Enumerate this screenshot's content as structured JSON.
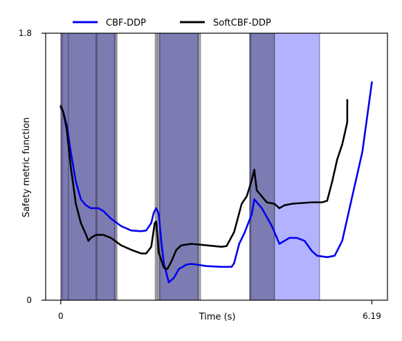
{
  "chart_data": {
    "type": "line",
    "title": "",
    "xlabel": "Time (s)",
    "ylabel": "Safety metric function",
    "xlim": [
      -0.3,
      6.5
    ],
    "ylim": [
      0,
      1.8
    ],
    "x_ticks": [
      0,
      6.19
    ],
    "x_tick_labels": [
      "0",
      "6.19"
    ],
    "y_ticks": [
      0,
      1.8
    ],
    "y_tick_labels": [
      "0",
      "1.8"
    ],
    "grid": false,
    "legend_position": "top, above plot",
    "series": [
      {
        "name": "CBF-DDP",
        "color": "#0000ee",
        "points": [
          [
            0,
            1.3
          ],
          [
            0.05,
            1.27
          ],
          [
            0.12,
            1.18
          ],
          [
            0.2,
            1.0
          ],
          [
            0.3,
            0.8
          ],
          [
            0.4,
            0.68
          ],
          [
            0.5,
            0.64
          ],
          [
            0.6,
            0.62
          ],
          [
            0.75,
            0.62
          ],
          [
            0.85,
            0.6
          ],
          [
            1.0,
            0.55
          ],
          [
            1.2,
            0.5
          ],
          [
            1.4,
            0.47
          ],
          [
            1.6,
            0.465
          ],
          [
            1.7,
            0.47
          ],
          [
            1.8,
            0.52
          ],
          [
            1.85,
            0.59
          ],
          [
            1.9,
            0.62
          ],
          [
            1.95,
            0.58
          ],
          [
            2.0,
            0.4
          ],
          [
            2.05,
            0.25
          ],
          [
            2.15,
            0.12
          ],
          [
            2.25,
            0.15
          ],
          [
            2.35,
            0.21
          ],
          [
            2.5,
            0.24
          ],
          [
            2.6,
            0.245
          ],
          [
            2.7,
            0.24
          ],
          [
            2.9,
            0.23
          ],
          [
            3.2,
            0.225
          ],
          [
            3.4,
            0.225
          ],
          [
            3.45,
            0.25
          ],
          [
            3.55,
            0.38
          ],
          [
            3.65,
            0.45
          ],
          [
            3.8,
            0.58
          ],
          [
            3.85,
            0.68
          ],
          [
            4.0,
            0.62
          ],
          [
            4.1,
            0.56
          ],
          [
            4.2,
            0.5
          ],
          [
            4.3,
            0.42
          ],
          [
            4.35,
            0.38
          ],
          [
            4.45,
            0.4
          ],
          [
            4.55,
            0.42
          ],
          [
            4.7,
            0.42
          ],
          [
            4.85,
            0.4
          ],
          [
            5.0,
            0.33
          ],
          [
            5.1,
            0.3
          ],
          [
            5.3,
            0.29
          ],
          [
            5.45,
            0.3
          ],
          [
            5.6,
            0.4
          ],
          [
            5.8,
            0.7
          ],
          [
            6.0,
            1.0
          ],
          [
            6.19,
            1.47
          ]
        ]
      },
      {
        "name": "SoftCBF-DDP",
        "color": "#000000",
        "points": [
          [
            0,
            1.31
          ],
          [
            0.05,
            1.27
          ],
          [
            0.12,
            1.15
          ],
          [
            0.2,
            0.9
          ],
          [
            0.3,
            0.65
          ],
          [
            0.4,
            0.52
          ],
          [
            0.5,
            0.445
          ],
          [
            0.55,
            0.4
          ],
          [
            0.6,
            0.42
          ],
          [
            0.7,
            0.44
          ],
          [
            0.85,
            0.44
          ],
          [
            1.0,
            0.42
          ],
          [
            1.2,
            0.37
          ],
          [
            1.4,
            0.34
          ],
          [
            1.6,
            0.315
          ],
          [
            1.7,
            0.315
          ],
          [
            1.8,
            0.36
          ],
          [
            1.87,
            0.52
          ],
          [
            1.9,
            0.53
          ],
          [
            1.95,
            0.32
          ],
          [
            2.05,
            0.22
          ],
          [
            2.12,
            0.21
          ],
          [
            2.2,
            0.26
          ],
          [
            2.3,
            0.34
          ],
          [
            2.4,
            0.37
          ],
          [
            2.6,
            0.38
          ],
          [
            2.9,
            0.37
          ],
          [
            3.2,
            0.36
          ],
          [
            3.3,
            0.365
          ],
          [
            3.45,
            0.46
          ],
          [
            3.6,
            0.65
          ],
          [
            3.7,
            0.7
          ],
          [
            3.8,
            0.81
          ],
          [
            3.85,
            0.88
          ],
          [
            3.9,
            0.74
          ],
          [
            4.0,
            0.7
          ],
          [
            4.1,
            0.66
          ],
          [
            4.25,
            0.65
          ],
          [
            4.35,
            0.62
          ],
          [
            4.45,
            0.64
          ],
          [
            4.6,
            0.65
          ],
          [
            4.8,
            0.655
          ],
          [
            5.0,
            0.66
          ],
          [
            5.2,
            0.66
          ],
          [
            5.3,
            0.67
          ],
          [
            5.4,
            0.8
          ],
          [
            5.5,
            0.95
          ],
          [
            5.6,
            1.05
          ],
          [
            5.7,
            1.2
          ],
          [
            5.7,
            1.35
          ]
        ]
      }
    ],
    "shaded_regions": [
      {
        "series": "CBF-DDP",
        "color": "#0000ff",
        "alpha": 0.3,
        "x_ranges": [
          [
            0.0,
            1.1
          ],
          [
            1.95,
            2.75
          ],
          [
            3.75,
            4.25
          ],
          [
            4.25,
            5.15
          ]
        ]
      },
      {
        "series": "SoftCBF-DDP",
        "color": "#000000",
        "alpha": 0.3,
        "x_ranges": [
          [
            0.0,
            1.12
          ],
          [
            1.88,
            2.78
          ],
          [
            3.76,
            4.26
          ]
        ]
      }
    ],
    "region_edges": [
      0.0,
      0.03,
      0.15,
      0.7,
      0.72,
      1.07,
      1.12,
      1.88,
      1.92,
      1.97,
      2.73,
      2.78,
      3.76,
      3.78,
      4.25,
      5.15
    ]
  }
}
